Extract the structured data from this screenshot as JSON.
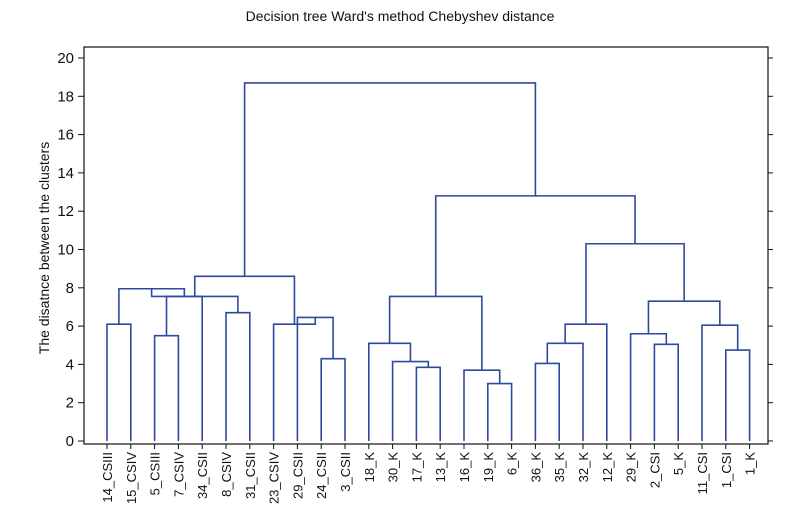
{
  "chart_data": {
    "type": "dendrogram",
    "title": "Decision tree Ward's method Chebyshev distance",
    "ylabel": "The disatnce between the clusters",
    "xlabel": "",
    "ylim": [
      0,
      20
    ],
    "yticks": [
      "0",
      "2",
      "4",
      "6",
      "8",
      "10",
      "12",
      "14",
      "16",
      "18",
      "20"
    ],
    "grid": false,
    "leaves": [
      "14_CSIII",
      "15_CSIV",
      "5_CSIII",
      "7_CSIV",
      "34_CSII",
      "8_CSIV",
      "31_CSII",
      "23_CSIV",
      "29_CSII",
      "24_CSII",
      "3_CSII",
      "18_K",
      "30_K",
      "17_K",
      "13_K",
      "16_K",
      "19_K",
      "6_K",
      "36_K",
      "35_K",
      "32_K",
      "12_K",
      "29_K",
      "2_CSI",
      "5_K",
      "11_CSI",
      "1_CSI",
      "1_K"
    ],
    "merges": [
      {
        "id": "a1",
        "left": "leaf:14_CSIII",
        "right": "leaf:15_CSIV",
        "height": 6.1
      },
      {
        "id": "a2",
        "left": "leaf:5_CSIII",
        "right": "leaf:7_CSIV",
        "height": 5.5
      },
      {
        "id": "a3",
        "left": "node:a2",
        "right": "leaf:34_CSII",
        "height": 7.55
      },
      {
        "id": "a4",
        "left": "node:a1",
        "right": "node:a3",
        "height": 7.95
      },
      {
        "id": "a5",
        "left": "leaf:8_CSIV",
        "right": "leaf:31_CSII",
        "height": 6.7
      },
      {
        "id": "a6",
        "left": "node:a4",
        "right": "node:a5",
        "height": 7.55
      },
      {
        "id": "a7",
        "left": "leaf:24_CSII",
        "right": "leaf:3_CSII",
        "height": 4.3
      },
      {
        "id": "a8",
        "left": "leaf:29_CSII",
        "right": "node:a7",
        "height": 6.45
      },
      {
        "id": "a9",
        "left": "leaf:23_CSIV",
        "right": "node:a8",
        "height": 6.1
      },
      {
        "id": "a10",
        "left": "node:a6",
        "right": "node:a9",
        "height": 8.6
      },
      {
        "id": "b1",
        "left": "leaf:17_K",
        "right": "leaf:13_K",
        "height": 3.85
      },
      {
        "id": "b2",
        "left": "leaf:30_K",
        "right": "node:b1",
        "height": 4.15
      },
      {
        "id": "b3",
        "left": "leaf:18_K",
        "right": "node:b2",
        "height": 5.1
      },
      {
        "id": "b4",
        "left": "leaf:19_K",
        "right": "leaf:6_K",
        "height": 3.0
      },
      {
        "id": "b5",
        "left": "leaf:16_K",
        "right": "node:b4",
        "height": 3.7
      },
      {
        "id": "b6",
        "left": "node:b3",
        "right": "node:b5",
        "height": 7.55
      },
      {
        "id": "c1",
        "left": "leaf:36_K",
        "right": "leaf:35_K",
        "height": 4.05
      },
      {
        "id": "c2",
        "left": "node:c1",
        "right": "leaf:32_K",
        "height": 5.1
      },
      {
        "id": "c3",
        "left": "node:c2",
        "right": "leaf:12_K",
        "height": 6.1
      },
      {
        "id": "c4",
        "left": "leaf:2_CSI",
        "right": "leaf:5_K",
        "height": 5.05
      },
      {
        "id": "c5",
        "left": "leaf:29_K",
        "right": "node:c4",
        "height": 5.6
      },
      {
        "id": "c6",
        "left": "leaf:1_CSI",
        "right": "leaf:1_K",
        "height": 4.75
      },
      {
        "id": "c7",
        "left": "leaf:11_CSI",
        "right": "node:c6",
        "height": 6.05
      },
      {
        "id": "c8",
        "left": "node:c5",
        "right": "node:c7",
        "height": 7.3
      },
      {
        "id": "c9",
        "left": "node:c3",
        "right": "node:c8",
        "height": 10.3
      },
      {
        "id": "d1",
        "left": "node:b6",
        "right": "node:c9",
        "height": 12.8
      },
      {
        "id": "root",
        "left": "node:a10",
        "right": "node:d1",
        "height": 18.7
      }
    ],
    "colors": {
      "tree": "#2e4a9e",
      "axis": "#111111"
    }
  }
}
